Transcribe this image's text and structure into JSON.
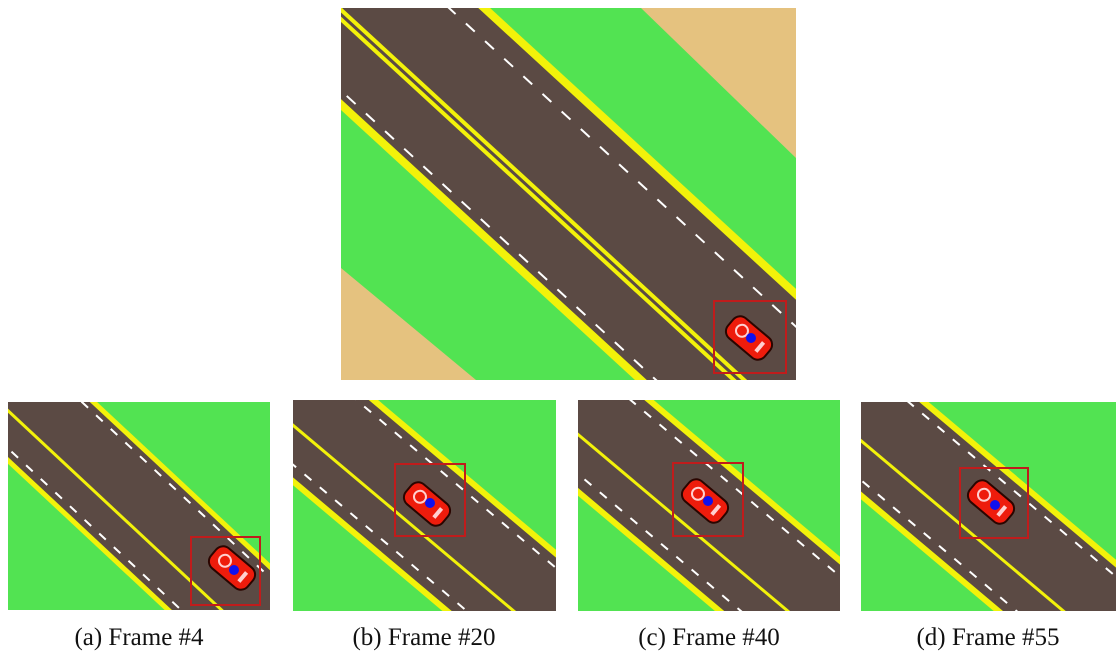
{
  "figure": {
    "captions": [
      "(a) Frame #4",
      "(b) Frame #20",
      "(c) Frame #40",
      "(d) Frame #55"
    ]
  },
  "colors": {
    "grass": "#52e352",
    "road": "#5b4a44",
    "edge": "#f2f20a",
    "sand": "#e5c27f",
    "car": "#ee1c0c",
    "box": "#c01c1c",
    "dot": "#1010ee",
    "dash": "#ffffff"
  }
}
